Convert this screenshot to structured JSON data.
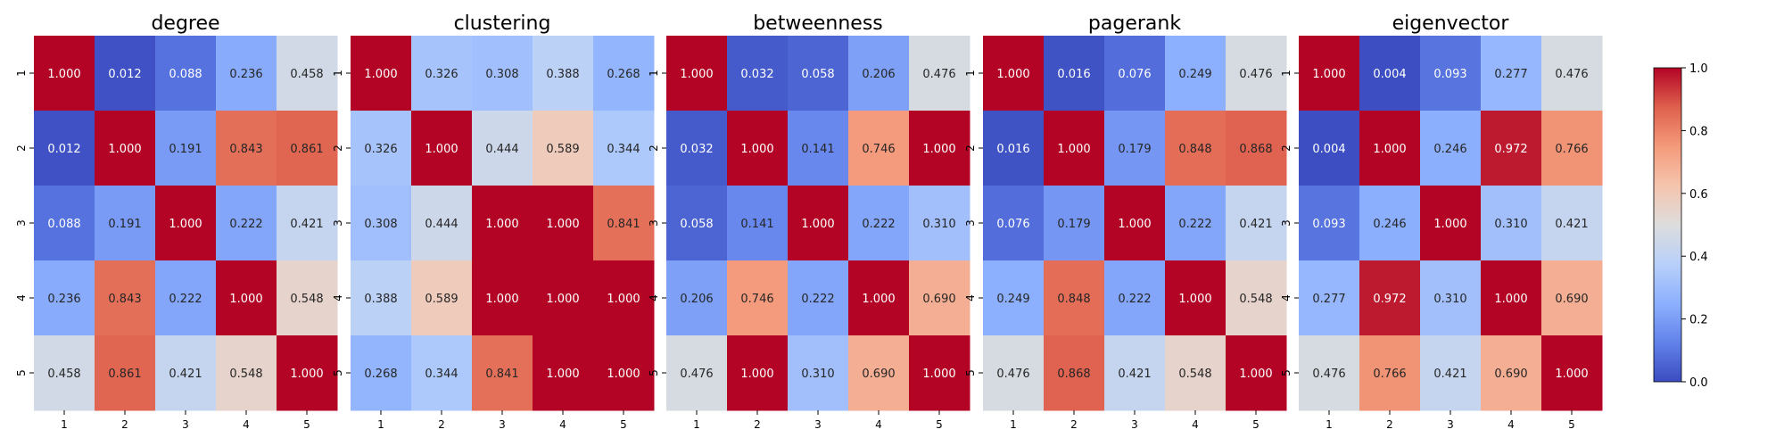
{
  "chart_data": {
    "type": "heatmap",
    "colormap": "coolwarm",
    "value_range": [
      0,
      1
    ],
    "value_format": "3 decimals",
    "x_ticks": [
      "1",
      "2",
      "3",
      "4",
      "5"
    ],
    "y_ticks": [
      "1",
      "2",
      "3",
      "4",
      "5"
    ],
    "colorbar": {
      "placement": "right",
      "ticks": [
        "0.0",
        "0.2",
        "0.4",
        "0.6",
        "0.8",
        "1.0"
      ]
    },
    "panels": [
      {
        "title": "degree",
        "values": [
          [
            1.0,
            0.012,
            0.088,
            0.236,
            0.458
          ],
          [
            0.012,
            1.0,
            0.191,
            0.843,
            0.861
          ],
          [
            0.088,
            0.191,
            1.0,
            0.222,
            0.421
          ],
          [
            0.236,
            0.843,
            0.222,
            1.0,
            0.548
          ],
          [
            0.458,
            0.861,
            0.421,
            0.548,
            1.0
          ]
        ]
      },
      {
        "title": "clustering",
        "values": [
          [
            1.0,
            0.326,
            0.308,
            0.388,
            0.268
          ],
          [
            0.326,
            1.0,
            0.444,
            0.589,
            0.344
          ],
          [
            0.308,
            0.444,
            1.0,
            1.0,
            0.841
          ],
          [
            0.388,
            0.589,
            1.0,
            1.0,
            1.0
          ],
          [
            0.268,
            0.344,
            0.841,
            1.0,
            1.0
          ]
        ]
      },
      {
        "title": "betweenness",
        "values": [
          [
            1.0,
            0.032,
            0.058,
            0.206,
            0.476
          ],
          [
            0.032,
            1.0,
            0.141,
            0.746,
            1.0
          ],
          [
            0.058,
            0.141,
            1.0,
            0.222,
            0.31
          ],
          [
            0.206,
            0.746,
            0.222,
            1.0,
            0.69
          ],
          [
            0.476,
            1.0,
            0.31,
            0.69,
            1.0
          ]
        ]
      },
      {
        "title": "pagerank",
        "values": [
          [
            1.0,
            0.016,
            0.076,
            0.249,
            0.476
          ],
          [
            0.016,
            1.0,
            0.179,
            0.848,
            0.868
          ],
          [
            0.076,
            0.179,
            1.0,
            0.222,
            0.421
          ],
          [
            0.249,
            0.848,
            0.222,
            1.0,
            0.548
          ],
          [
            0.476,
            0.868,
            0.421,
            0.548,
            1.0
          ]
        ]
      },
      {
        "title": "eigenvector",
        "values": [
          [
            1.0,
            0.004,
            0.093,
            0.277,
            0.476
          ],
          [
            0.004,
            1.0,
            0.246,
            0.972,
            0.766
          ],
          [
            0.093,
            0.246,
            1.0,
            0.31,
            0.421
          ],
          [
            0.277,
            0.972,
            0.31,
            1.0,
            0.69
          ],
          [
            0.476,
            0.766,
            0.421,
            0.69,
            1.0
          ]
        ]
      }
    ]
  }
}
